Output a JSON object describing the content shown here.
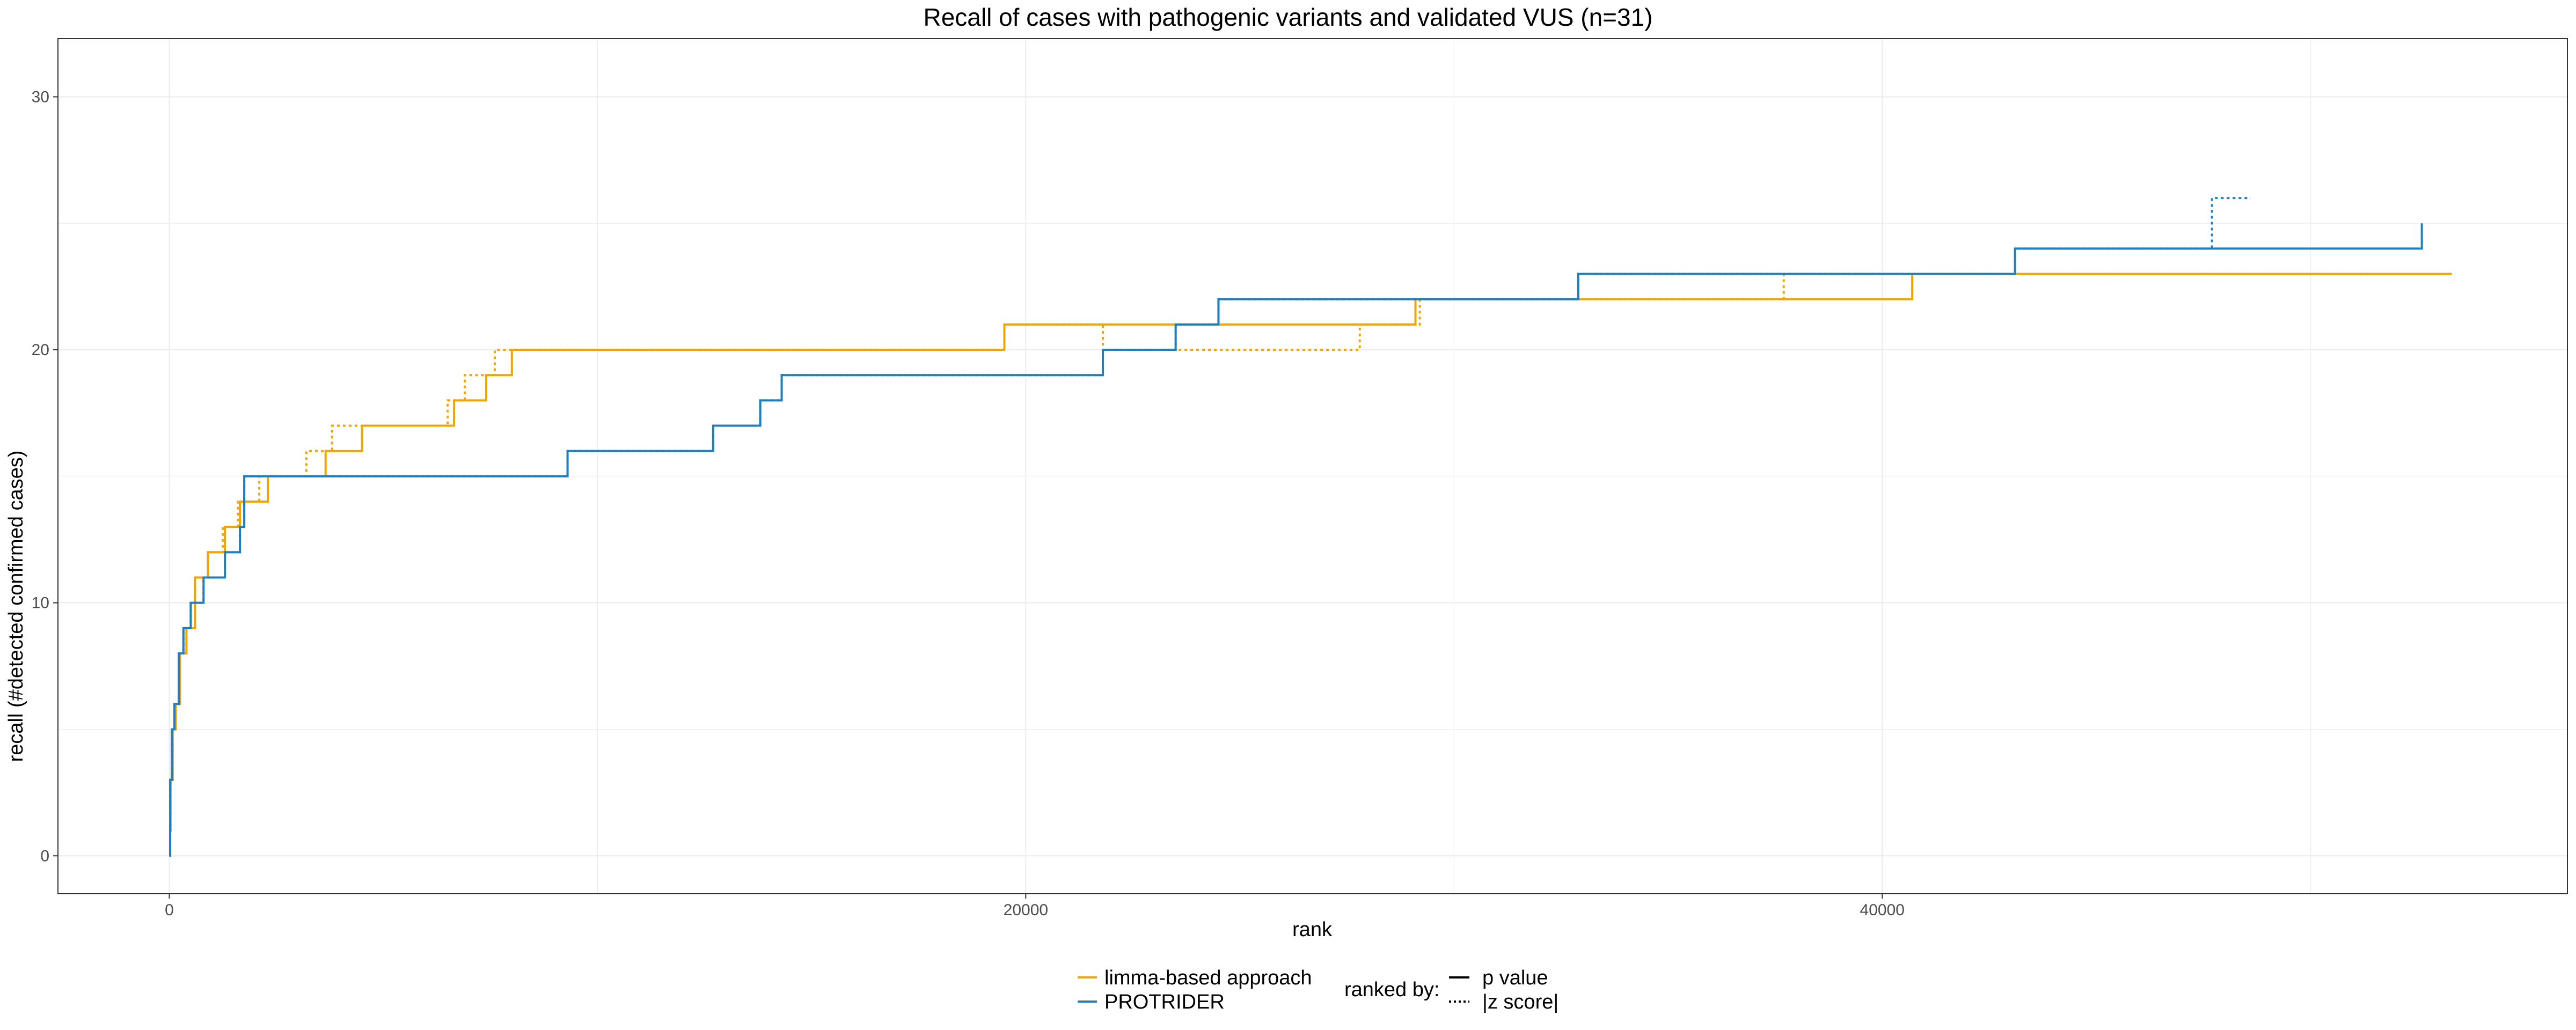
{
  "chart_data": {
    "type": "line",
    "title": "Recall of cases with pathogenic variants and validated VUS (n=31)",
    "xlabel": "rank",
    "ylabel": "recall (#detected confirmed cases)",
    "xlim": [
      -2600,
      56000
    ],
    "ylim": [
      -1.5,
      32.3
    ],
    "x_ticks": [
      0,
      20000,
      40000
    ],
    "x_tick_labels": [
      "0",
      "20000",
      "40000"
    ],
    "y_ticks": [
      0,
      10,
      20,
      30
    ],
    "y_tick_labels": [
      "0",
      "10",
      "20",
      "30"
    ],
    "grid": true,
    "step": true,
    "colors": {
      "limma-based approach": "#F0A500",
      "PROTRIDER": "#1F7FBF"
    },
    "legend": {
      "position": "bottom",
      "method_entries": [
        "limma-based approach",
        "PROTRIDER"
      ],
      "ranked_by_title": "ranked by:",
      "ranked_by_entries": [
        "p value",
        "|z score|"
      ]
    },
    "series": [
      {
        "method": "limma-based approach",
        "ranked_by": "p value",
        "x": [
          0,
          30,
          80,
          150,
          250,
          400,
          600,
          900,
          1300,
          1650,
          2300,
          3650,
          4500,
          6650,
          7400,
          8000,
          19500,
          21700,
          29100,
          40700,
          53300
        ],
        "y": [
          1,
          3,
          5,
          6,
          8,
          9,
          11,
          12,
          13,
          14,
          15,
          16,
          17,
          18,
          19,
          20,
          21,
          21,
          22,
          23,
          23
        ]
      },
      {
        "method": "limma-based approach",
        "ranked_by": "|z score|",
        "x": [
          0,
          30,
          80,
          150,
          250,
          400,
          600,
          900,
          1250,
          1600,
          2100,
          3200,
          3800,
          6500,
          6900,
          7600,
          19500,
          21800,
          27800,
          29200,
          37700,
          40800,
          53300
        ],
        "y": [
          1,
          3,
          5,
          6,
          8,
          9,
          11,
          12,
          13,
          14,
          15,
          16,
          17,
          18,
          19,
          20,
          21,
          20,
          21,
          22,
          23,
          23,
          23
        ]
      },
      {
        "method": "PROTRIDER",
        "ranked_by": "p value",
        "x": [
          0,
          20,
          60,
          120,
          220,
          330,
          500,
          800,
          1300,
          1650,
          1750,
          9300,
          12700,
          13800,
          14300,
          21800,
          23500,
          24500,
          32900,
          43100,
          52600
        ],
        "y": [
          0,
          3,
          5,
          6,
          8,
          9,
          10,
          11,
          12,
          13,
          15,
          16,
          17,
          18,
          19,
          20,
          21,
          22,
          23,
          24,
          25
        ],
        "end_x": 52600
      },
      {
        "method": "PROTRIDER",
        "ranked_by": "|z score|",
        "x": [
          0,
          20,
          60,
          120,
          220,
          330,
          500,
          800,
          1300,
          1650,
          1750,
          9300,
          12700,
          13800,
          14300,
          21800,
          23500,
          24500,
          32900,
          43100,
          47700,
          48600
        ],
        "y": [
          0,
          3,
          5,
          6,
          8,
          9,
          10,
          11,
          12,
          13,
          15,
          16,
          17,
          18,
          19,
          20,
          21,
          22,
          23,
          24,
          26,
          26
        ]
      }
    ]
  }
}
